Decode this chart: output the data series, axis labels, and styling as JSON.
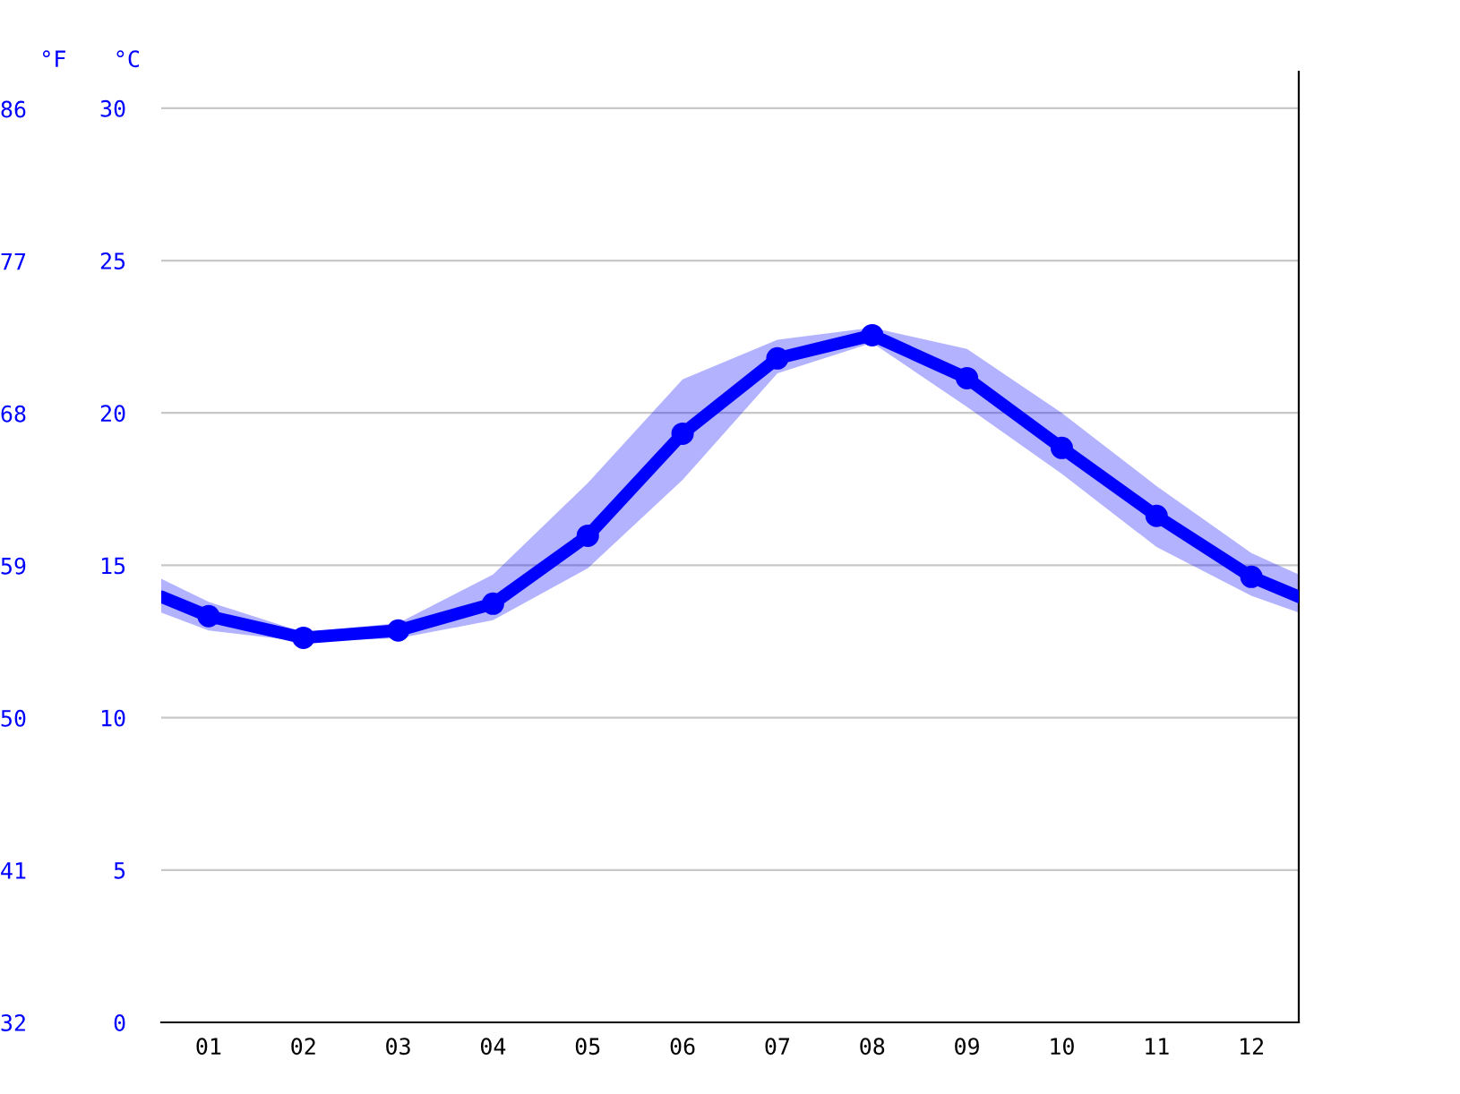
{
  "chart_data": {
    "type": "line",
    "xlabel": null,
    "ylabel": "°C",
    "y2label": "°F",
    "x": [
      0.5,
      1,
      2,
      3,
      4,
      5,
      6,
      7,
      8,
      9,
      10,
      11,
      12,
      12.5
    ],
    "xlim": [
      0.5,
      12.5
    ],
    "xticks": [
      {
        "value": 1,
        "label": "01"
      },
      {
        "value": 2,
        "label": "02"
      },
      {
        "value": 3,
        "label": "03"
      },
      {
        "value": 4,
        "label": "04"
      },
      {
        "value": 5,
        "label": "05"
      },
      {
        "value": 6,
        "label": "06"
      },
      {
        "value": 7,
        "label": "07"
      },
      {
        "value": 8,
        "label": "08"
      },
      {
        "value": 9,
        "label": "09"
      },
      {
        "value": 10,
        "label": "10"
      },
      {
        "value": 11,
        "label": "11"
      },
      {
        "value": 12,
        "label": "12"
      }
    ],
    "ylim": [
      0,
      31.2
    ],
    "yticks": [
      0,
      5,
      10,
      15,
      20,
      25,
      30
    ],
    "y2lim": [
      32,
      88.2
    ],
    "y2ticks": [
      32,
      41,
      50,
      59,
      68,
      77,
      86
    ],
    "grid": "y",
    "legend": false,
    "marker": "circle",
    "line_style": "solid",
    "series": [
      {
        "color": "#0000ff",
        "values": [
          13.97,
          13.33,
          12.62,
          12.86,
          13.74,
          15.97,
          19.32,
          21.79,
          22.55,
          21.14,
          18.85,
          16.62,
          14.62,
          13.97
        ],
        "lower": [
          13.45,
          12.86,
          12.5,
          12.6,
          13.2,
          14.9,
          17.8,
          21.3,
          22.3,
          20.2,
          18.0,
          15.6,
          14.0,
          13.45
        ],
        "upper": [
          14.56,
          13.8,
          12.8,
          13.1,
          14.7,
          17.7,
          21.1,
          22.4,
          22.8,
          22.1,
          20.0,
          17.6,
          15.4,
          14.7
        ]
      }
    ]
  }
}
